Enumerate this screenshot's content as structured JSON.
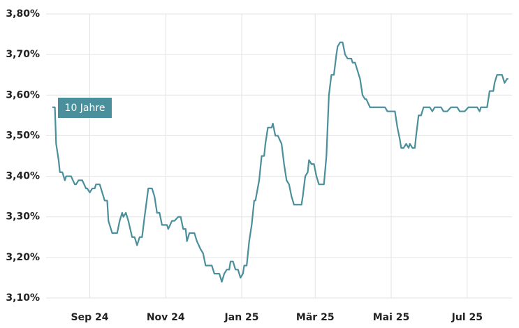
{
  "chart_data": {
    "type": "line",
    "x": [
      1,
      3,
      4,
      6,
      7,
      9,
      11,
      12,
      16,
      19,
      20,
      22,
      25,
      28,
      29,
      31,
      33,
      35,
      36,
      39,
      41,
      43,
      45,
      46,
      48,
      49,
      53,
      55,
      57,
      58,
      60,
      62,
      65,
      67,
      69,
      71,
      73,
      75,
      78,
      81,
      83,
      85,
      87,
      89,
      93,
      94,
      97,
      99,
      102,
      104,
      106,
      108,
      109,
      111,
      115,
      117,
      120,
      122,
      124,
      129,
      131,
      135,
      137,
      139,
      141,
      143,
      144,
      146,
      148,
      150,
      152,
      154,
      155,
      157,
      159,
      161,
      163,
      164,
      167,
      169,
      171,
      172,
      174,
      177,
      178,
      180,
      182,
      185,
      187,
      189,
      191,
      193,
      195,
      201,
      202,
      204,
      206,
      207,
      209,
      211,
      213,
      215,
      219,
      221,
      223,
      225,
      227,
      229,
      230,
      232,
      234,
      236,
      238,
      241,
      242,
      244,
      246,
      248,
      250,
      252,
      253,
      256,
      260,
      268,
      270,
      276,
      278,
      280,
      281,
      283,
      285,
      287,
      288,
      290,
      292,
      293,
      295,
      297,
      299,
      304,
      306,
      308,
      313,
      315,
      318,
      321,
      326,
      328,
      332,
      335,
      342,
      344,
      345,
      350,
      352,
      355,
      356,
      358,
      362,
      363,
      364,
      366,
      367
    ],
    "series": [
      {
        "name": "10 Jahre",
        "color": "#4a8f9b",
        "values": [
          3.57,
          3.57,
          3.48,
          3.44,
          3.41,
          3.41,
          3.39,
          3.4,
          3.4,
          3.38,
          3.38,
          3.39,
          3.39,
          3.37,
          3.37,
          3.36,
          3.37,
          3.37,
          3.38,
          3.38,
          3.36,
          3.34,
          3.34,
          3.29,
          3.27,
          3.26,
          3.26,
          3.29,
          3.31,
          3.3,
          3.31,
          3.29,
          3.25,
          3.25,
          3.23,
          3.25,
          3.25,
          3.3,
          3.37,
          3.37,
          3.35,
          3.31,
          3.31,
          3.28,
          3.28,
          3.27,
          3.29,
          3.29,
          3.3,
          3.3,
          3.27,
          3.27,
          3.24,
          3.26,
          3.26,
          3.24,
          3.22,
          3.21,
          3.18,
          3.18,
          3.16,
          3.16,
          3.14,
          3.16,
          3.17,
          3.17,
          3.19,
          3.19,
          3.17,
          3.17,
          3.15,
          3.16,
          3.18,
          3.18,
          3.24,
          3.28,
          3.34,
          3.34,
          3.39,
          3.45,
          3.45,
          3.48,
          3.52,
          3.52,
          3.53,
          3.5,
          3.5,
          3.48,
          3.43,
          3.39,
          3.38,
          3.35,
          3.33,
          3.33,
          3.35,
          3.4,
          3.41,
          3.44,
          3.43,
          3.43,
          3.4,
          3.38,
          3.38,
          3.45,
          3.6,
          3.65,
          3.65,
          3.7,
          3.72,
          3.73,
          3.73,
          3.7,
          3.69,
          3.69,
          3.68,
          3.68,
          3.66,
          3.64,
          3.6,
          3.59,
          3.59,
          3.57,
          3.57,
          3.57,
          3.56,
          3.56,
          3.52,
          3.49,
          3.47,
          3.47,
          3.48,
          3.47,
          3.48,
          3.47,
          3.47,
          3.5,
          3.55,
          3.55,
          3.57,
          3.57,
          3.56,
          3.57,
          3.57,
          3.56,
          3.56,
          3.57,
          3.57,
          3.56,
          3.56,
          3.57,
          3.57,
          3.56,
          3.57,
          3.57,
          3.61,
          3.61,
          3.63,
          3.65,
          3.65,
          3.64,
          3.63,
          3.64,
          3.64
        ]
      }
    ],
    "xlim": [
      1,
      370
    ],
    "xticks": [
      {
        "value": 31,
        "label": "Sep 24"
      },
      {
        "value": 92,
        "label": "Nov 24"
      },
      {
        "value": 153,
        "label": "Jan 25"
      },
      {
        "value": 212,
        "label": "Mär 25"
      },
      {
        "value": 273,
        "label": "Mai 25"
      },
      {
        "value": 334,
        "label": "Jul 25"
      }
    ],
    "ylim": [
      3.1,
      3.8
    ],
    "yticks": [
      {
        "value": 3.1,
        "label": "3,10%"
      },
      {
        "value": 3.2,
        "label": "3,20%"
      },
      {
        "value": 3.3,
        "label": "3,30%"
      },
      {
        "value": 3.4,
        "label": "3,40%"
      },
      {
        "value": 3.5,
        "label": "3,50%"
      },
      {
        "value": 3.6,
        "label": "3,60%"
      },
      {
        "value": 3.7,
        "label": "3,70%"
      },
      {
        "value": 3.8,
        "label": "3,80%"
      }
    ],
    "grid": true
  }
}
